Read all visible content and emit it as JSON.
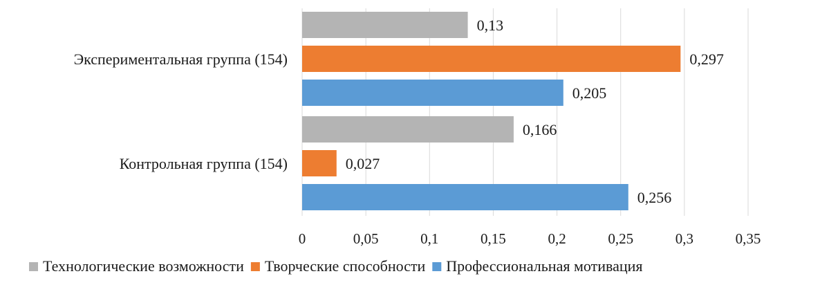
{
  "chart_data": {
    "type": "bar",
    "orientation": "horizontal",
    "categories": [
      "Экспериментальная группа (154)",
      "Контрольная группа (154)"
    ],
    "series": [
      {
        "name": "Технологические возможности",
        "color": "#b4b4b4",
        "values": [
          0.13,
          0.166
        ],
        "labels": [
          "0,13",
          "0,166"
        ]
      },
      {
        "name": "Творческие способности",
        "color": "#ed7d31",
        "values": [
          0.297,
          0.027
        ],
        "labels": [
          "0,297",
          "0,027"
        ]
      },
      {
        "name": "Профессиональная мотивация",
        "color": "#5b9bd5",
        "values": [
          0.205,
          0.256
        ],
        "labels": [
          "0,205",
          "0,256"
        ]
      }
    ],
    "xlim": [
      0,
      0.35
    ],
    "xticks": [
      0,
      0.05,
      0.1,
      0.15,
      0.2,
      0.25,
      0.3,
      0.35
    ],
    "xtick_labels": [
      "0",
      "0,05",
      "0,1",
      "0,15",
      "0,2",
      "0,25",
      "0,3",
      "0,35"
    ],
    "grid": true,
    "legend_position": "bottom"
  }
}
